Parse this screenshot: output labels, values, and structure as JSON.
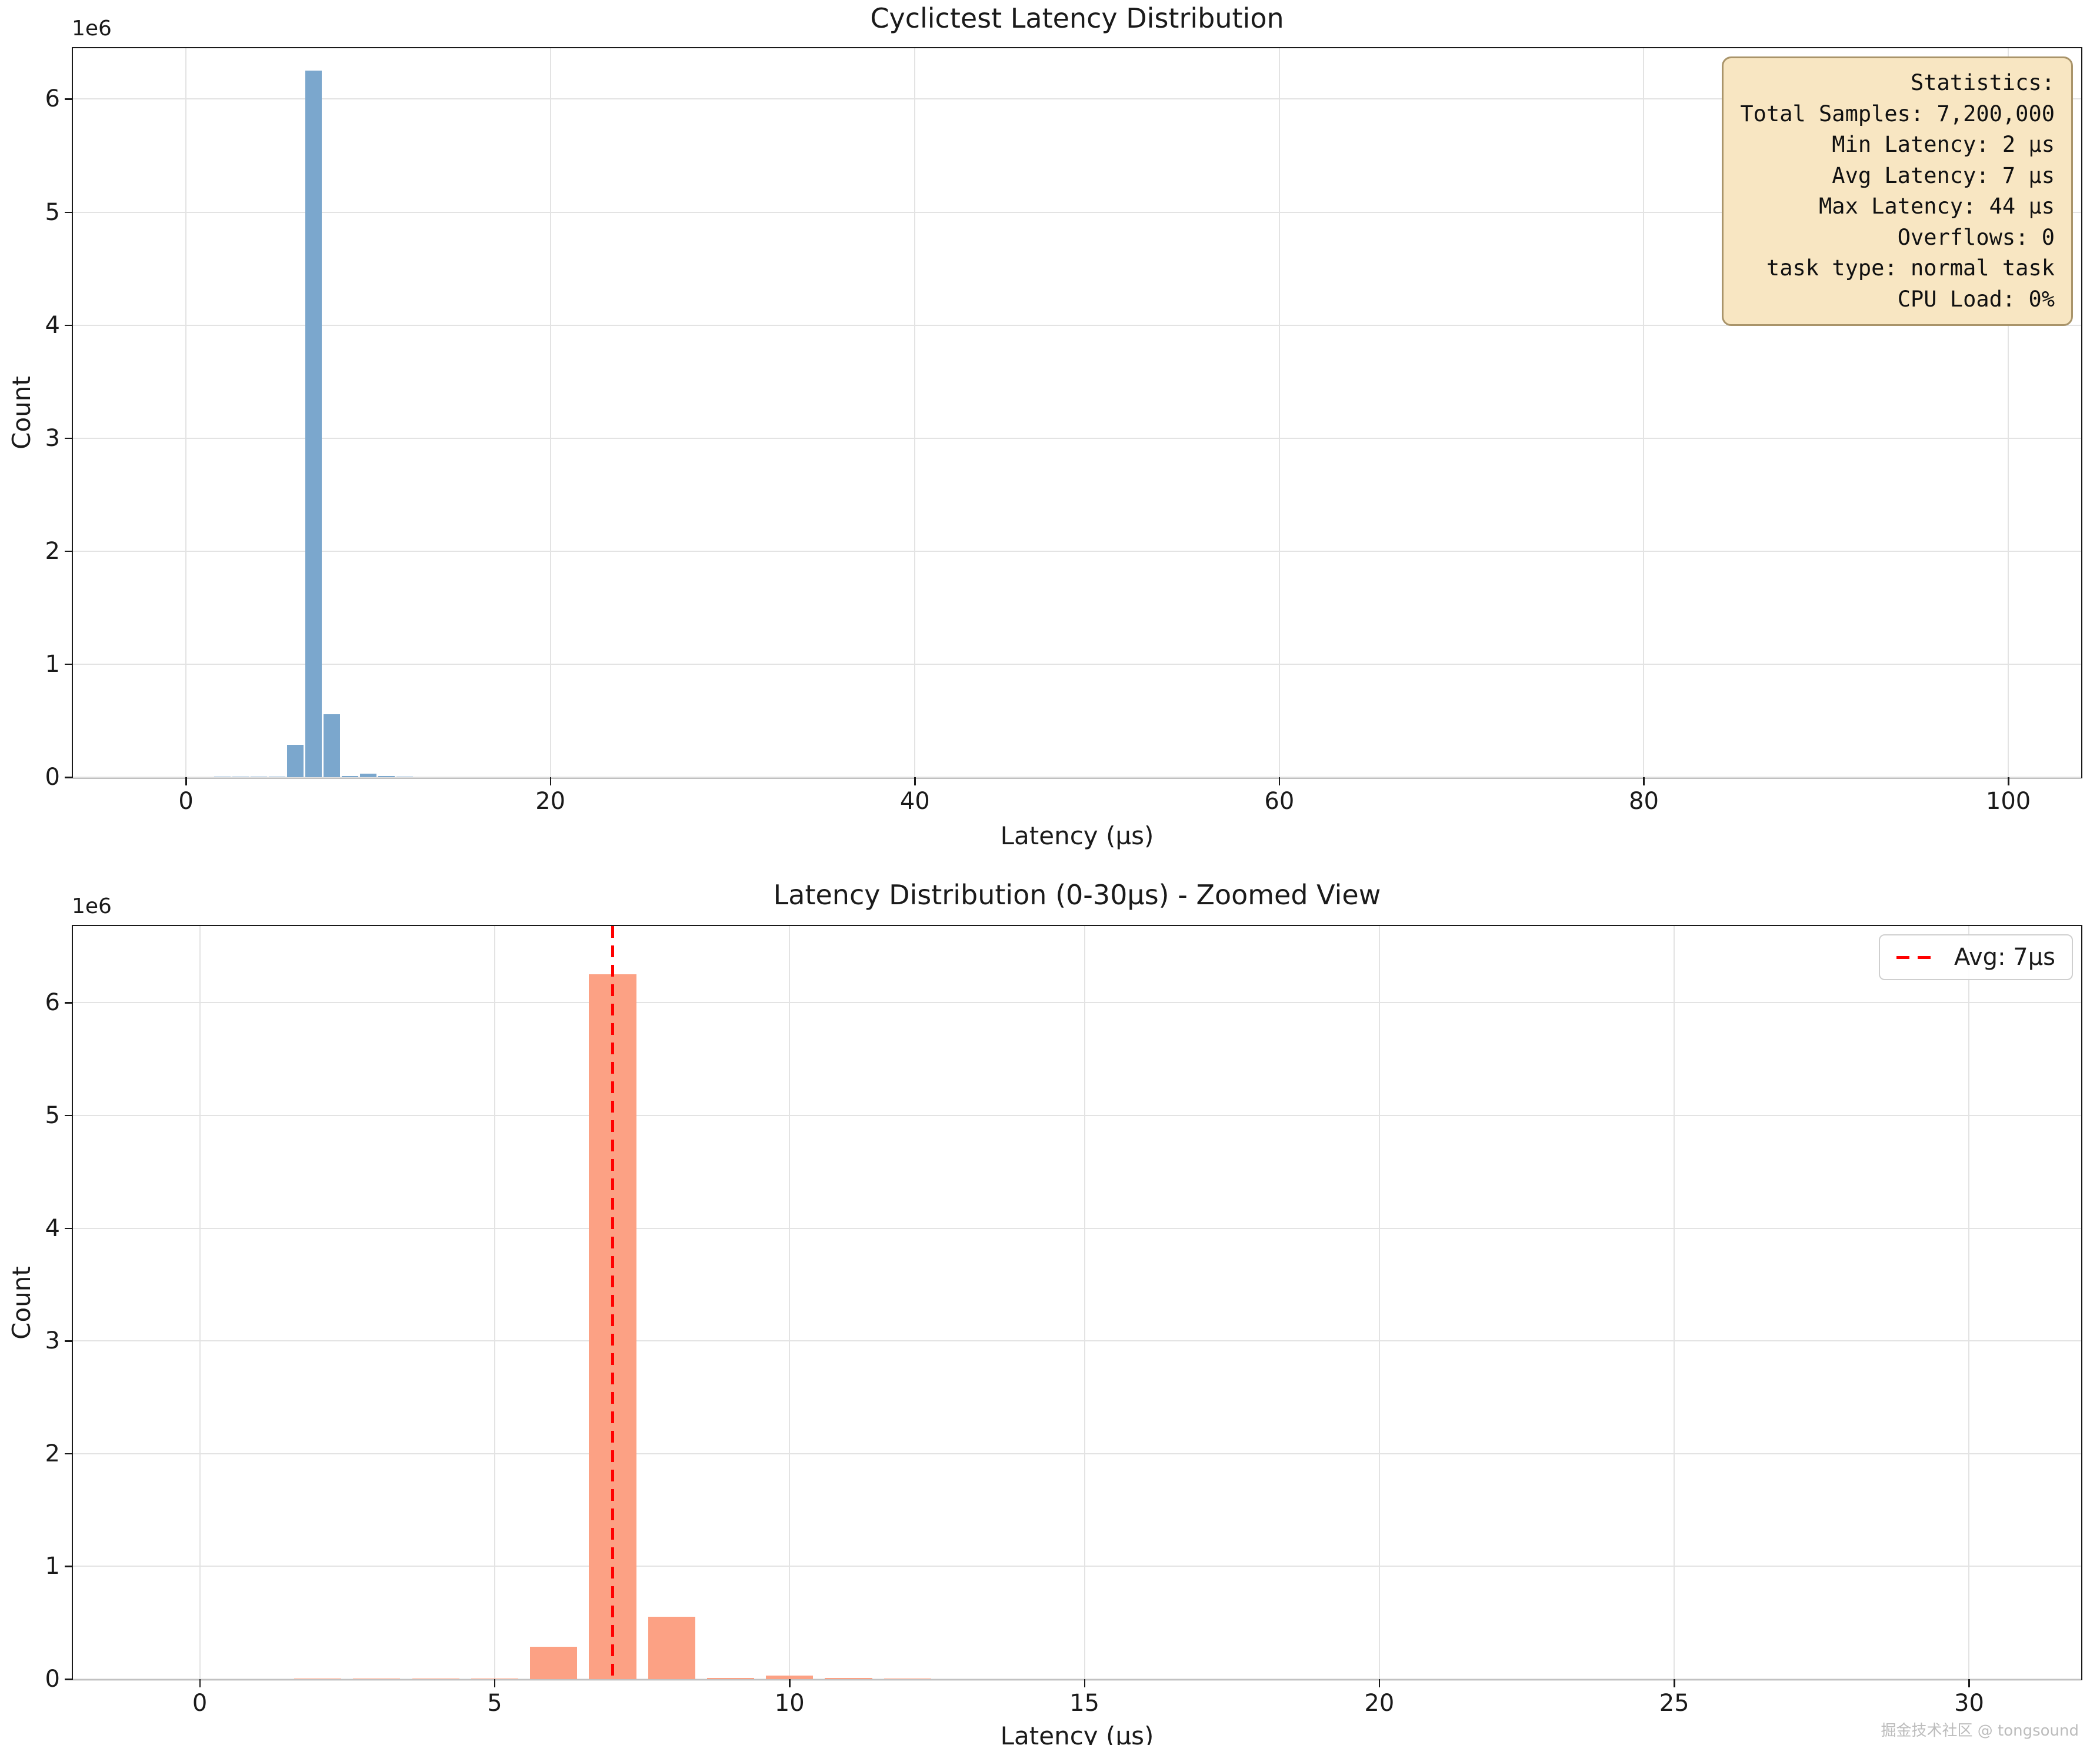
{
  "page": {
    "watermark": "掘金技术社区 @ tongsound"
  },
  "stats_box": {
    "lines": [
      "Statistics:",
      "Total Samples: 7,200,000",
      "Min Latency: 2 µs",
      "Avg Latency: 7 µs",
      "Max Latency: 44 µs",
      "Overflows: 0",
      "task type: normal task",
      "CPU Load: 0%"
    ],
    "background_color": "#f8e6c2",
    "border_color": "#a9946a"
  },
  "chart_data": [
    {
      "type": "bar",
      "title": "Cyclictest Latency Distribution",
      "xlabel": "Latency (µs)",
      "ylabel": "Count",
      "offset_text": "1e6",
      "grid": true,
      "xlim": [
        -6.2,
        104
      ],
      "ylim": [
        0,
        6450000
      ],
      "xticks": [
        0,
        20,
        40,
        60,
        80,
        100
      ],
      "yticks": [
        0,
        1000000,
        2000000,
        3000000,
        4000000,
        5000000,
        6000000
      ],
      "ytick_labels": [
        "0",
        "1",
        "2",
        "3",
        "4",
        "5",
        "6"
      ],
      "bar_color": "#7ba7cd",
      "bar_width": 0.9,
      "bins": [
        2,
        3,
        4,
        5,
        6,
        7,
        8,
        9,
        10,
        11,
        12
      ],
      "counts": [
        1500,
        2500,
        4000,
        6000,
        285000,
        6250000,
        555000,
        9000,
        30000,
        13000,
        2500
      ]
    },
    {
      "type": "bar",
      "title": "Latency Distribution (0-30µs) - Zoomed View",
      "xlabel": "Latency (µs)",
      "ylabel": "Count",
      "offset_text": "1e6",
      "grid": true,
      "legend_position": "upper right",
      "xlim": [
        -2.15,
        31.9
      ],
      "ylim": [
        0,
        6680000
      ],
      "xticks": [
        0,
        5,
        10,
        15,
        20,
        25,
        30
      ],
      "yticks": [
        0,
        1000000,
        2000000,
        3000000,
        4000000,
        5000000,
        6000000
      ],
      "ytick_labels": [
        "0",
        "1",
        "2",
        "3",
        "4",
        "5",
        "6"
      ],
      "bar_color": "#fca184",
      "bar_width": 0.8,
      "bins": [
        2,
        3,
        4,
        5,
        6,
        7,
        8,
        9,
        10,
        11,
        12
      ],
      "counts": [
        1500,
        2500,
        4000,
        6000,
        285000,
        6250000,
        555000,
        9000,
        30000,
        13000,
        2500
      ],
      "avg_line": {
        "x": 7,
        "color": "#ff0000",
        "label": "Avg: 7µs"
      }
    }
  ]
}
